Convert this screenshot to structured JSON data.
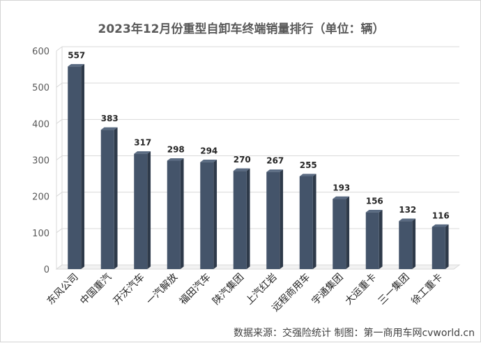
{
  "chart_data": {
    "type": "bar",
    "title": "2023年12月份重型自卸车终端销量排行（单位：辆）",
    "categories": [
      "东风公司",
      "中国重汽",
      "开沃汽车",
      "一汽解放",
      "福田汽车",
      "陕汽集团",
      "上汽红岩",
      "远程商用车",
      "宇通集团",
      "大运重卡",
      "三一集团",
      "徐工重卡"
    ],
    "values": [
      557,
      383,
      317,
      298,
      294,
      270,
      267,
      255,
      193,
      156,
      132,
      116
    ],
    "ylim": [
      0,
      600
    ],
    "yticks": [
      0,
      100,
      200,
      300,
      400,
      500,
      600
    ],
    "grid": true,
    "xlabel": "",
    "ylabel": "",
    "bar_color": "#44546a"
  },
  "source_note": "数据来源：交强险统计 制图：第一商用车网cvworld.cn"
}
